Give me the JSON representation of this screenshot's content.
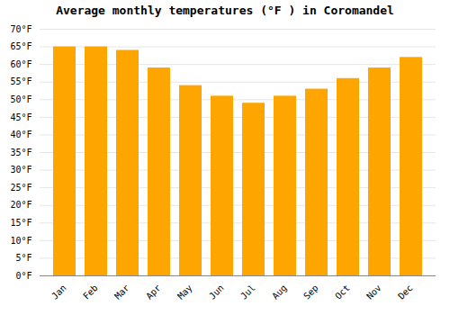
{
  "chart_data": {
    "type": "bar",
    "title": "Average monthly temperatures (°F ) in Coromandel",
    "categories": [
      "Jan",
      "Feb",
      "Mar",
      "Apr",
      "May",
      "Jun",
      "Jul",
      "Aug",
      "Sep",
      "Oct",
      "Nov",
      "Dec"
    ],
    "values": [
      65,
      65,
      64,
      59,
      54,
      51,
      49,
      51,
      53,
      56,
      59,
      62
    ],
    "color": "#FFA500",
    "ylim": [
      0,
      70
    ],
    "yticks": [
      {
        "value": 0,
        "label": "0°F"
      },
      {
        "value": 5,
        "label": "5°F"
      },
      {
        "value": 10,
        "label": "10°F"
      },
      {
        "value": 15,
        "label": "15°F"
      },
      {
        "value": 20,
        "label": "20°F"
      },
      {
        "value": 25,
        "label": "25°F"
      },
      {
        "value": 30,
        "label": "30°F"
      },
      {
        "value": 35,
        "label": "35°F"
      },
      {
        "value": 40,
        "label": "40°F"
      },
      {
        "value": 45,
        "label": "45°F"
      },
      {
        "value": 50,
        "label": "50°F"
      },
      {
        "value": 55,
        "label": "55°F"
      },
      {
        "value": 60,
        "label": "60°F"
      },
      {
        "value": 65,
        "label": "65°F"
      },
      {
        "value": 70,
        "label": "70°F"
      }
    ],
    "grid": true
  }
}
